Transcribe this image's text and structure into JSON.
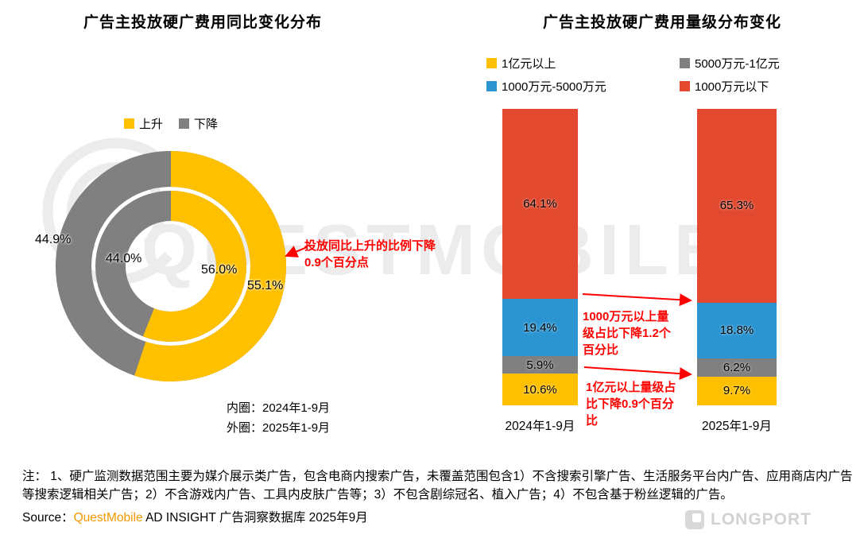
{
  "watermark": {
    "text": "QUESTMOBILE",
    "color": "#ECECEC"
  },
  "brand_logo": {
    "text": "LONGPORT",
    "color": "#D2D2D2"
  },
  "notes": "注：  1、硬广监测数据范围主要为媒介展示类广告，包含电商内搜索广告，未覆盖范围包含1）不含搜索引擎广告、生活服务平台内广告、应用商店内广告等搜索逻辑相关广告；2）不含游戏内广告、工具内皮肤广告等；3）不包含剧综冠名、植入广告；4）不包含基于粉丝逻辑的广告。",
  "source": {
    "prefix": "Source：",
    "brand": "QuestMobile",
    "rest": " AD INSIGHT 广告洞察数据库 2025年9月",
    "brand_color": "#F39800"
  },
  "chart_data": [
    {
      "type": "pie",
      "subtype": "double_donut",
      "title": "广告主投放硬广费用同比变化分布",
      "legend": [
        {
          "label": "上升",
          "color": "#FFC000"
        },
        {
          "label": "下降",
          "color": "#808080"
        }
      ],
      "rings": [
        {
          "name": "内圈",
          "period": "2024年1-9月",
          "rise": 56.0,
          "fall": 44.0
        },
        {
          "name": "外圈",
          "period": "2025年1-9月",
          "rise": 55.1,
          "fall": 44.9
        }
      ],
      "ring_captions": [
        "内圈：2024年1-9月",
        "外圈：2025年1-9月"
      ],
      "annotation": "投放同比上升的比例下降0.9个百分点",
      "annotation_color": "#FF0000"
    },
    {
      "type": "bar",
      "subtype": "stacked_percent",
      "title": "广告主投放硬广费用量级分布变化",
      "categories": [
        "2024年1-9月",
        "2025年1-9月"
      ],
      "series": [
        {
          "name": "1亿元以上",
          "color": "#FFC000",
          "values": [
            10.6,
            9.7
          ]
        },
        {
          "name": "5000万元-1亿元",
          "color": "#808080",
          "values": [
            5.9,
            6.2
          ]
        },
        {
          "name": "1000万元-5000万元",
          "color": "#2B95D2",
          "values": [
            19.4,
            18.8
          ]
        },
        {
          "name": "1000万元以下",
          "color": "#E2492E",
          "values": [
            64.1,
            65.3
          ]
        }
      ],
      "stack_order": "bottom_to_top",
      "ylim": [
        0,
        100
      ],
      "grid": false,
      "legend_position": "top",
      "annotations": [
        {
          "text": "1000万元以上量级占比下降1.2个百分比",
          "color": "#FF0000"
        },
        {
          "text": "1亿元以上量级占比下降0.9个百分比",
          "color": "#FF0000"
        }
      ]
    }
  ]
}
